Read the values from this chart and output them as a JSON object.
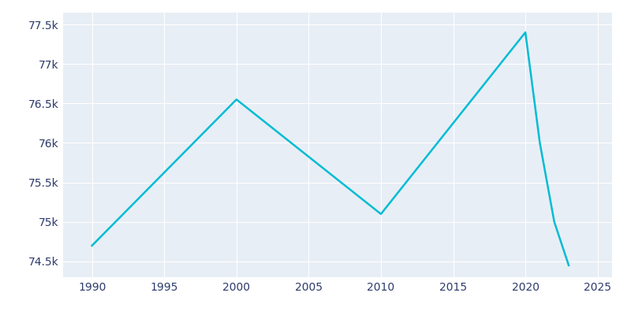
{
  "years": [
    1990,
    2000,
    2010,
    2020,
    2021,
    2022,
    2023
  ],
  "population": [
    74700,
    76550,
    75100,
    77400,
    76000,
    75000,
    74450
  ],
  "line_color": "#00BCD4",
  "fig_background_color": "#ffffff",
  "plot_bg_color": "#e8eef5",
  "grid_color": "#ffffff",
  "tick_color": "#2d3a6b",
  "ylim": [
    74300,
    77650
  ],
  "xlim": [
    1988,
    2026
  ],
  "yticks": [
    74500,
    75000,
    75500,
    76000,
    76500,
    77000,
    77500
  ],
  "xticks": [
    1990,
    1995,
    2000,
    2005,
    2010,
    2015,
    2020,
    2025
  ],
  "line_width": 1.8,
  "figsize": [
    8.0,
    4.0
  ],
  "dpi": 100
}
